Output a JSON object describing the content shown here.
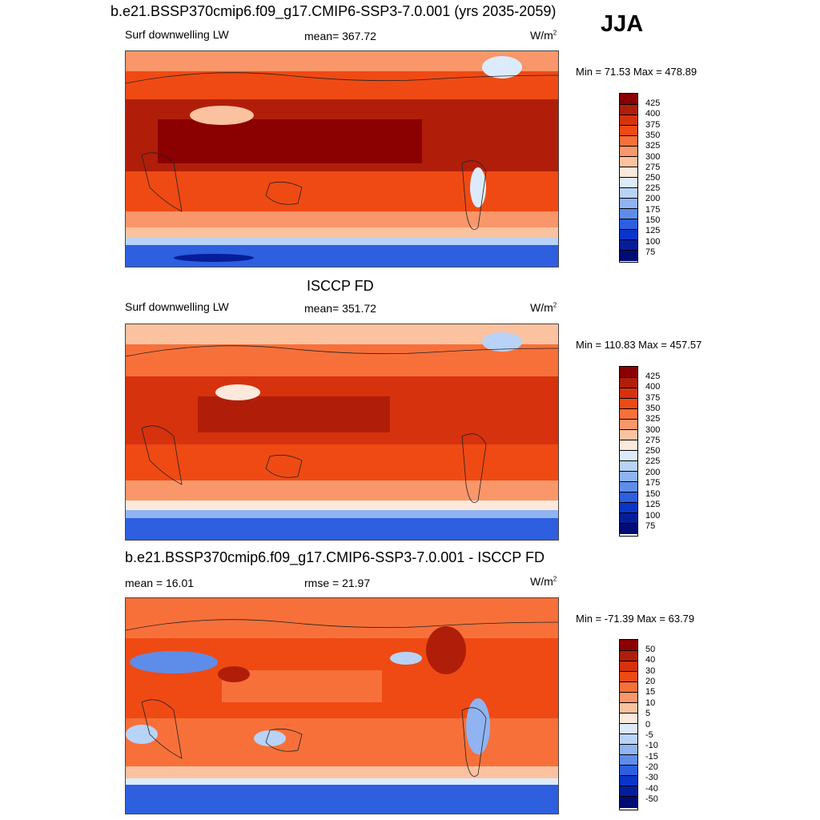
{
  "header": {
    "title": "b.e21.BSSP370cmip6.f09_g17.CMIP6-SSP3-7.0.001 (yrs 2035-2059)",
    "season": "JJA"
  },
  "panel1": {
    "variable": "Surf downwelling LW",
    "mean": "mean= 367.72",
    "units": "W/m",
    "units_sup": "2",
    "minmax": "Min =  71.53 Max = 478.89",
    "colorbar": [
      "425",
      "400",
      "375",
      "350",
      "325",
      "300",
      "275",
      "250",
      "225",
      "200",
      "175",
      "150",
      "125",
      "100",
      "75"
    ]
  },
  "panel2": {
    "title": "ISCCP FD",
    "variable": "Surf downwelling LW",
    "mean": "mean= 351.72",
    "units": "W/m",
    "units_sup": "2",
    "minmax": "Min = 110.83 Max = 457.57",
    "colorbar": [
      "425",
      "400",
      "375",
      "350",
      "325",
      "300",
      "275",
      "250",
      "225",
      "200",
      "175",
      "150",
      "125",
      "100",
      "75"
    ]
  },
  "panel3": {
    "title": "b.e21.BSSP370cmip6.f09_g17.CMIP6-SSP3-7.0.001 - ISCCP FD",
    "mean": "mean =  16.01",
    "rmse": "rmse =  21.97",
    "units": "W/m",
    "units_sup": "2",
    "minmax": "Min = -71.39 Max =  63.79",
    "colorbar": [
      "50",
      "40",
      "30",
      "20",
      "15",
      "10",
      "5",
      "0",
      "-5",
      "-10",
      "-15",
      "-20",
      "-30",
      "-40",
      "-50"
    ]
  },
  "colors": {
    "scale": [
      "#8b0000",
      "#b01e0a",
      "#d6320e",
      "#ef4a14",
      "#f7703a",
      "#f9976a",
      "#fbc2a0",
      "#fde9dc",
      "#dcebfb",
      "#b8d3f7",
      "#8fb4f1",
      "#5e8de9",
      "#2d5fdf",
      "#0a35c8",
      "#051d9a",
      "#000b74"
    ]
  }
}
